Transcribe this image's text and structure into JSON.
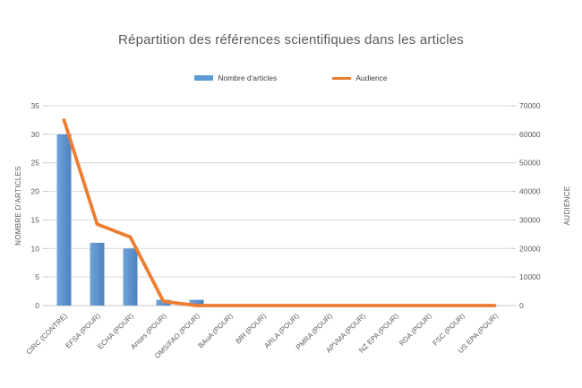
{
  "chart_data": {
    "type": "combo",
    "title": "Répartition des références scientifiques dans les articles",
    "categories": [
      "CIRC (CONTRE)",
      "EFSA (POUR)",
      "ECHA (POUR)",
      "Anses (POUR)",
      "OMS/FAO (POUR)",
      "BAuA (POUR)",
      "BfR (POUR)",
      "ARLA (POUR)",
      "PMRA (POUR)",
      "APVMA (POUR)",
      "NZ EPA (POUR)",
      "RDA (POUR)",
      "FSC (POUR)",
      "US EPA (POUR)"
    ],
    "series": [
      {
        "name": "Nombre d'articles",
        "chart_type": "bar",
        "axis": "left",
        "color": "#5B9BD5",
        "values": [
          30,
          11,
          10,
          1,
          1,
          0,
          0,
          0,
          0,
          0,
          0,
          0,
          0,
          0
        ]
      },
      {
        "name": "Audience",
        "chart_type": "line",
        "axis": "right",
        "color": "#ED7D31",
        "values": [
          65000,
          28500,
          24000,
          1500,
          0,
          0,
          0,
          0,
          0,
          0,
          0,
          0,
          0,
          0
        ]
      }
    ],
    "left_axis": {
      "title": "NOMBRE D'ARTICLES",
      "min": 0,
      "max": 35,
      "step": 5,
      "tick_labels": [
        "0",
        "5",
        "10",
        "15",
        "20",
        "25",
        "30",
        "35"
      ]
    },
    "right_axis": {
      "title": "AUDIENCE",
      "min": 0,
      "max": 70000,
      "step": 10000,
      "tick_labels": [
        "0",
        "10000",
        "20000",
        "30000",
        "40000",
        "50000",
        "60000",
        "70000"
      ]
    },
    "legend": {
      "position": "top",
      "items": [
        "Nombre d'articles",
        "Audience"
      ]
    },
    "grid": true
  },
  "style": {
    "background": "#FFFFFF",
    "text_color": "#595959",
    "grid_color": "#D9D9D9",
    "axis_line_color": "#C6C6C6",
    "bar_gradient": [
      "#6FA3D8",
      "#4E82C0"
    ]
  }
}
